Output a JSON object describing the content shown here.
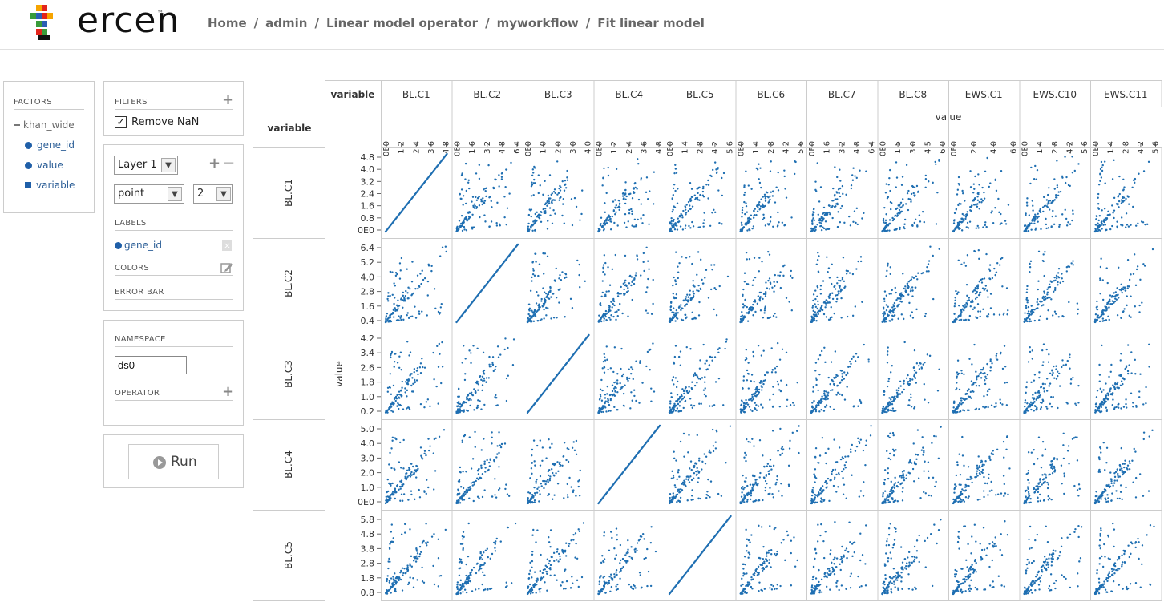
{
  "header": {
    "logo_text": "ercen",
    "logo_tm": "™",
    "breadcrumbs": [
      "Home",
      "admin",
      "Linear model operator",
      "myworkflow",
      "Fit linear model"
    ],
    "separator": "/"
  },
  "factors": {
    "title": "FACTORS",
    "group": "khan_wide",
    "items": [
      {
        "label": "gene_id",
        "shape": "dot"
      },
      {
        "label": "value",
        "shape": "dot"
      },
      {
        "label": "variable",
        "shape": "square"
      }
    ]
  },
  "filters": {
    "title": "FILTERS",
    "remove_nan_label": "Remove NaN",
    "remove_nan_checked": true
  },
  "layer": {
    "layer_select": "Layer 1",
    "geom_select": "point",
    "size_select": "2",
    "labels_title": "LABELS",
    "label_item": "gene_id",
    "colors_title": "COLORS",
    "error_bar_title": "ERROR BAR"
  },
  "namespace": {
    "title": "NAMESPACE",
    "value": "ds0",
    "operator_title": "OPERATOR"
  },
  "run": {
    "label": "Run"
  },
  "colors": {
    "accent": "#1f6fb2",
    "grid": "#cccccc",
    "text": "#333333"
  },
  "chart_data": {
    "type": "scatter",
    "corner_label": "variable",
    "row_header_label": "variable",
    "x_axis_title": "value",
    "y_axis_title": "value",
    "columns": [
      "BL.C1",
      "BL.C2",
      "BL.C3",
      "BL.C4",
      "BL.C5",
      "BL.C6",
      "BL.C7",
      "BL.C8",
      "EWS.C1",
      "EWS.C10",
      "EWS.C11"
    ],
    "rows": [
      "BL.C1",
      "BL.C2",
      "BL.C3",
      "BL.C4",
      "BL.C5"
    ],
    "x_ticks": [
      [
        "0E0",
        "1.2",
        "2.4",
        "3.6",
        "4.8"
      ],
      [
        "0E0",
        "1.6",
        "3.2",
        "4.8",
        "6.4"
      ],
      [
        "0E0",
        "1.0",
        "2.0",
        "3.0",
        "4.0"
      ],
      [
        "0E0",
        "1.2",
        "2.4",
        "3.6",
        "4.8"
      ],
      [
        "0E0",
        "1.4",
        "2.8",
        "4.2",
        "5.6"
      ],
      [
        "0E0",
        "1.4",
        "2.8",
        "4.2",
        "5.6"
      ],
      [
        "0E0",
        "1.6",
        "3.2",
        "4.8",
        "6.4"
      ],
      [
        "0E0",
        "1.5",
        "3.0",
        "4.5",
        "6.0"
      ],
      [
        "0E0",
        "2.0",
        "4.0",
        "6.0"
      ],
      [
        "0E0",
        "1.4",
        "2.8",
        "4.2",
        "5.6"
      ],
      [
        "0E0",
        "1.4",
        "2.8",
        "4.2",
        "5.6"
      ]
    ],
    "y_ticks": [
      [
        "0E0",
        "0.8",
        "1.6",
        "2.4",
        "3.2",
        "4.0",
        "4.8"
      ],
      [
        "0.4",
        "1.6",
        "2.8",
        "4.0",
        "5.2",
        "6.4"
      ],
      [
        "0.2",
        "1.0",
        "1.8",
        "2.6",
        "3.4",
        "4.2"
      ],
      [
        "0E0",
        "1.0",
        "2.0",
        "3.0",
        "4.0",
        "5.0"
      ],
      [
        "0.8",
        "1.8",
        "2.8",
        "3.8",
        "4.8",
        "5.8"
      ]
    ]
  }
}
